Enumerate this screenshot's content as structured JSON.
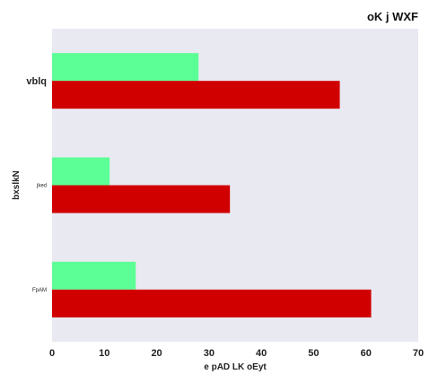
{
  "chart_data": {
    "type": "bar",
    "orientation": "horizontal",
    "title": "oK j WXF",
    "xlabel": "e pAD LK oEyt",
    "ylabel": "bxslkN",
    "categories": [
      "vblq",
      "jked",
      "FpAM"
    ],
    "category_label_sizes": [
      "large",
      "tiny",
      "tiny"
    ],
    "series": [
      {
        "values": [
          28,
          11,
          16
        ],
        "color": "#5cff96"
      },
      {
        "values": [
          55,
          34,
          61
        ],
        "color": "#d10000"
      }
    ],
    "xlim": [
      0,
      70
    ],
    "xticks": [
      0,
      10,
      20,
      30,
      40,
      50,
      60,
      70
    ],
    "grid": false,
    "background": "#e9e9f2",
    "legend": "none"
  }
}
